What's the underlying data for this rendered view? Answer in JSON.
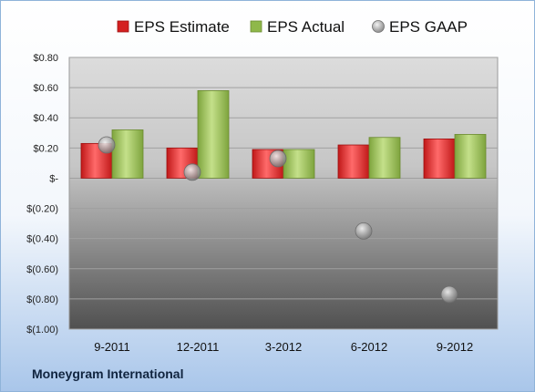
{
  "footer": {
    "brand": "Moneygram International"
  },
  "chart_data": {
    "type": "bar",
    "title": "",
    "xlabel": "",
    "ylabel": "",
    "categories": [
      "9-2011",
      "12-2011",
      "3-2012",
      "6-2012",
      "9-2012"
    ],
    "series": [
      {
        "name": "EPS Estimate",
        "kind": "bar",
        "color": "#d42020",
        "values": [
          0.23,
          0.2,
          0.19,
          0.22,
          0.26
        ]
      },
      {
        "name": "EPS Actual",
        "kind": "bar",
        "color": "#8fb84a",
        "values": [
          0.32,
          0.58,
          0.19,
          0.27,
          0.29
        ]
      },
      {
        "name": "EPS GAAP",
        "kind": "scatter",
        "color": "#9a9a9a",
        "values": [
          0.22,
          0.04,
          0.13,
          -0.35,
          -0.77
        ]
      }
    ],
    "ylim": [
      -1.0,
      0.8
    ],
    "yticks": [
      0.8,
      0.6,
      0.4,
      0.2,
      0,
      -0.2,
      -0.4,
      -0.6,
      -0.8,
      -1.0
    ],
    "ytick_labels": [
      "$0.80",
      "$0.60",
      "$0.40",
      "$0.20",
      "$-",
      "$(0.20)",
      "$(0.40)",
      "$(0.60)",
      "$(0.80)",
      "$(1.00)"
    ],
    "grid": true,
    "legend_position": "top"
  }
}
